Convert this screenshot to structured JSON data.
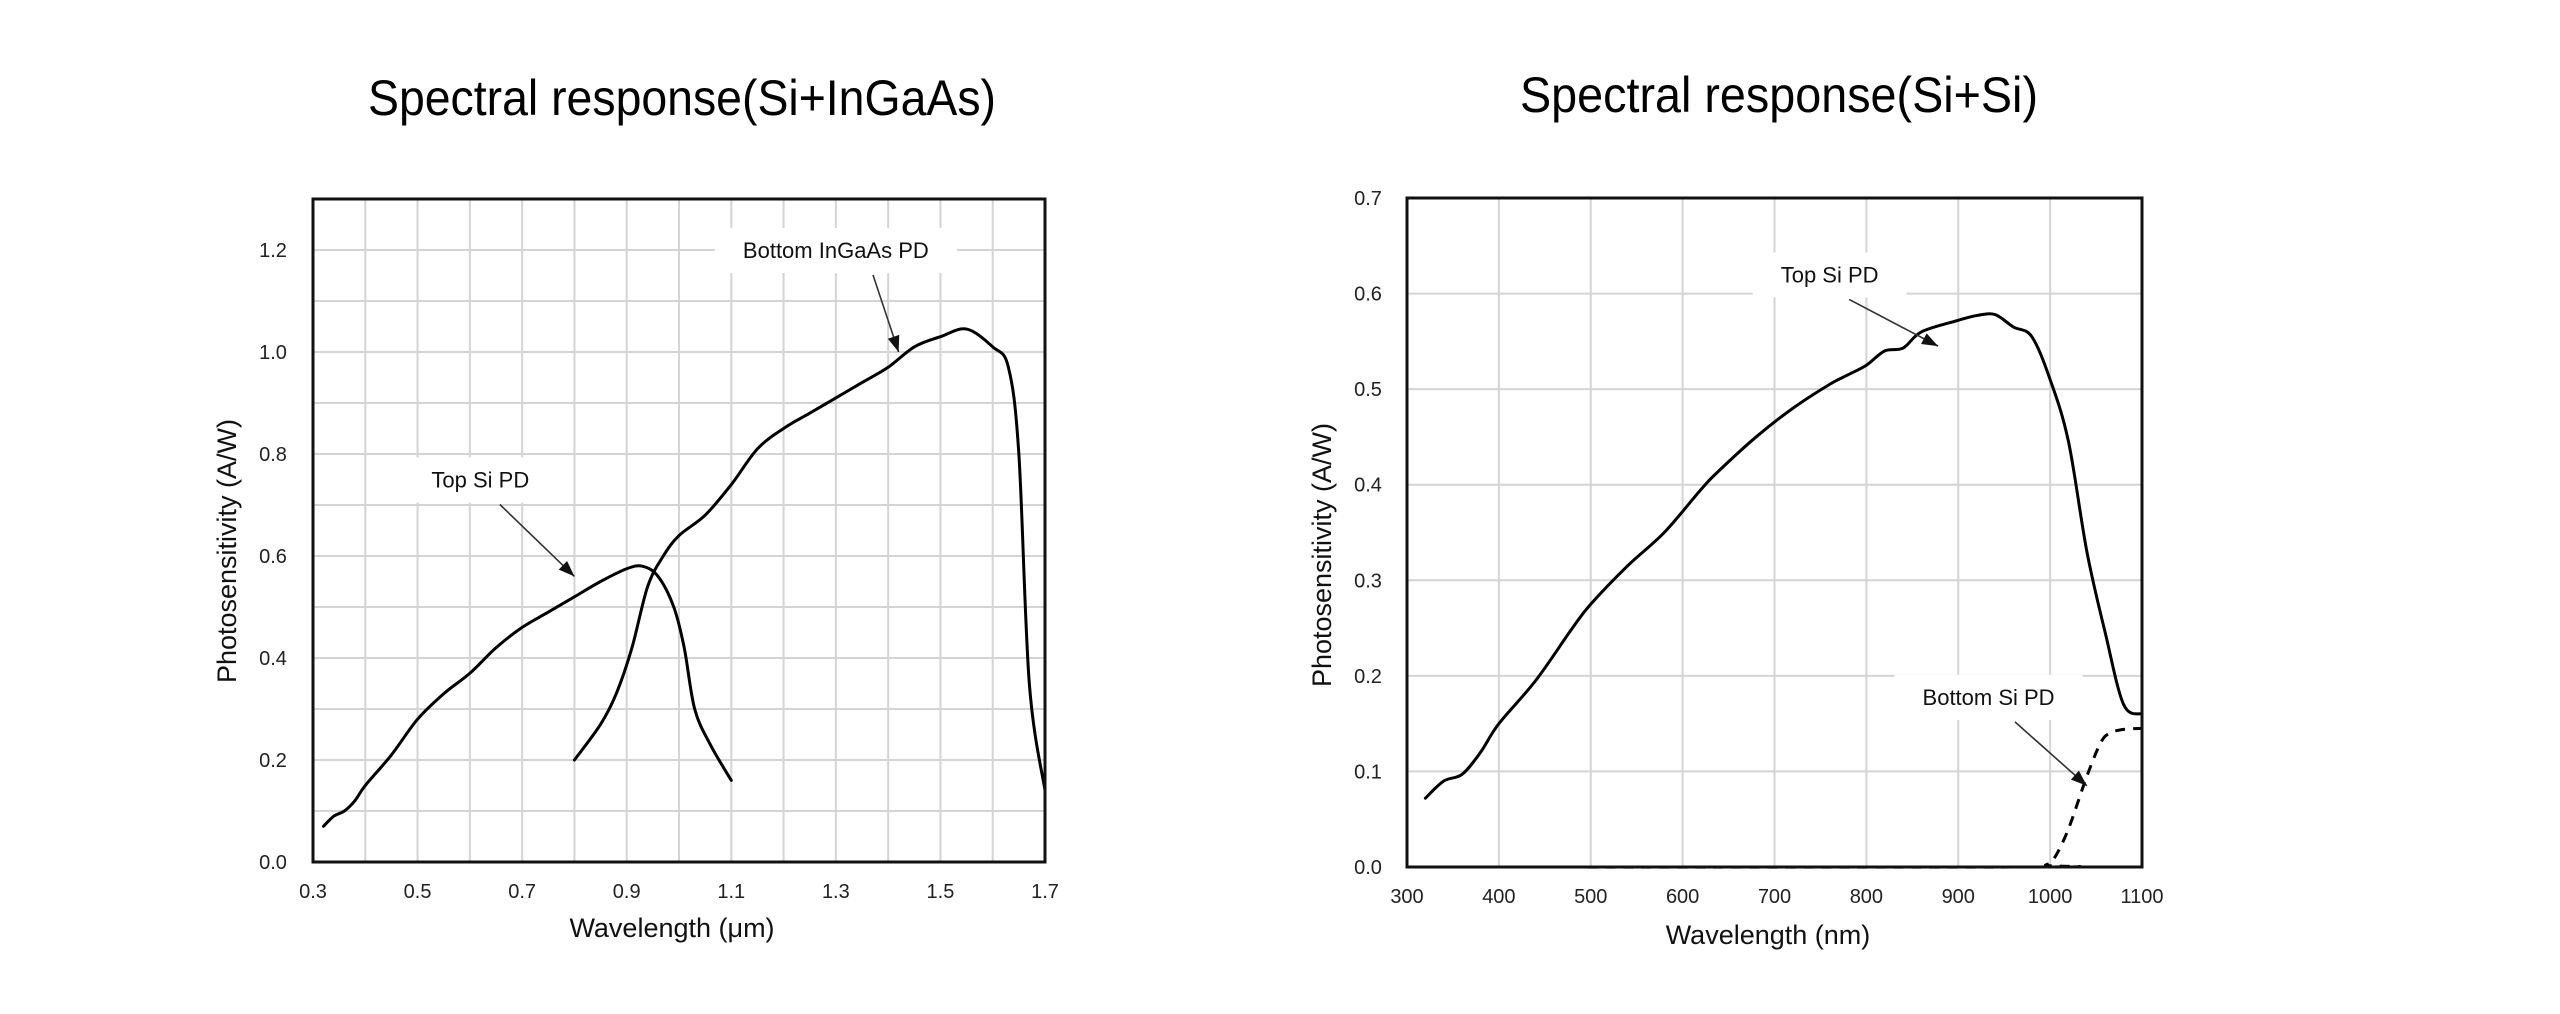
{
  "chart_data": [
    {
      "type": "line",
      "title": "Spectral response(Si+InGaAs)",
      "xlabel": "Wavelength (μm)",
      "ylabel": "Photosensitivity (A/W)",
      "xlim": [
        0.3,
        1.7
      ],
      "ylim": [
        0.0,
        1.3
      ],
      "xticks": [
        0.3,
        0.5,
        0.7,
        0.9,
        1.1,
        1.3,
        1.5,
        1.7
      ],
      "xtick_labels": [
        "0.3",
        "0.5",
        "0.7",
        "0.9",
        "1.1",
        "1.3",
        "1.5",
        "1.7"
      ],
      "yticks": [
        0.0,
        0.2,
        0.4,
        0.6,
        0.8,
        1.0,
        1.2
      ],
      "ytick_labels": [
        "0.0",
        "0.2",
        "0.4",
        "0.6",
        "0.8",
        "1.0",
        "1.2"
      ],
      "xgrid_step": 0.1,
      "ygrid_step": 0.1,
      "grid": true,
      "series": [
        {
          "name": "Top Si PD",
          "style": "solid",
          "x": [
            0.32,
            0.34,
            0.36,
            0.38,
            0.4,
            0.45,
            0.5,
            0.55,
            0.6,
            0.65,
            0.7,
            0.75,
            0.8,
            0.85,
            0.9,
            0.93,
            0.96,
            0.99,
            1.01,
            1.03,
            1.06,
            1.1
          ],
          "y": [
            0.07,
            0.09,
            0.1,
            0.12,
            0.15,
            0.21,
            0.28,
            0.33,
            0.37,
            0.42,
            0.46,
            0.49,
            0.52,
            0.55,
            0.575,
            0.58,
            0.56,
            0.5,
            0.42,
            0.3,
            0.23,
            0.16
          ]
        },
        {
          "name": "Bottom InGaAs PD",
          "style": "solid",
          "x": [
            0.8,
            0.85,
            0.88,
            0.91,
            0.94,
            0.97,
            1.0,
            1.05,
            1.1,
            1.15,
            1.2,
            1.25,
            1.3,
            1.35,
            1.4,
            1.45,
            1.5,
            1.55,
            1.6,
            1.63,
            1.65,
            1.67,
            1.7
          ],
          "y": [
            0.2,
            0.27,
            0.33,
            0.42,
            0.54,
            0.6,
            0.64,
            0.68,
            0.74,
            0.81,
            0.85,
            0.88,
            0.91,
            0.94,
            0.97,
            1.01,
            1.03,
            1.045,
            1.01,
            0.97,
            0.8,
            0.35,
            0.14
          ]
        }
      ],
      "annotations": [
        {
          "text": "Bottom InGaAs PD",
          "series": "Bottom InGaAs PD",
          "label_at": [
            1.3,
            1.2
          ],
          "arrow_to": [
            1.42,
            1.0
          ]
        },
        {
          "text": "Top Si PD",
          "series": "Top Si PD",
          "label_at": [
            0.62,
            0.75
          ],
          "arrow_to": [
            0.8,
            0.56
          ]
        }
      ]
    },
    {
      "type": "line",
      "title": "Spectral response(Si+Si)",
      "xlabel": "Wavelength (nm)",
      "ylabel": "Photosensitivity (A/W)",
      "xlim": [
        300,
        1100
      ],
      "ylim": [
        0.0,
        0.7
      ],
      "xticks": [
        300,
        400,
        500,
        600,
        700,
        800,
        900,
        1000,
        1100
      ],
      "xtick_labels": [
        "300",
        "400",
        "500",
        "600",
        "700",
        "800",
        "900",
        "1000",
        "1100"
      ],
      "yticks": [
        0.0,
        0.1,
        0.2,
        0.3,
        0.4,
        0.5,
        0.6,
        0.7
      ],
      "ytick_labels": [
        "0.0",
        "0.1",
        "0.2",
        "0.3",
        "0.4",
        "0.5",
        "0.6",
        "0.7"
      ],
      "xgrid_step": 100,
      "ygrid_step": 0.1,
      "grid": true,
      "series": [
        {
          "name": "Top Si PD",
          "style": "solid",
          "x": [
            320,
            340,
            360,
            380,
            400,
            440,
            480,
            500,
            540,
            580,
            620,
            640,
            680,
            720,
            760,
            780,
            800,
            820,
            840,
            860,
            900,
            920,
            940,
            960,
            980,
            1000,
            1020,
            1040,
            1060,
            1080,
            1100
          ],
          "y": [
            0.072,
            0.09,
            0.097,
            0.12,
            0.15,
            0.195,
            0.25,
            0.275,
            0.315,
            0.35,
            0.395,
            0.415,
            0.45,
            0.48,
            0.505,
            0.515,
            0.525,
            0.54,
            0.543,
            0.56,
            0.572,
            0.577,
            0.578,
            0.565,
            0.555,
            0.51,
            0.445,
            0.33,
            0.245,
            0.17,
            0.16
          ]
        },
        {
          "name": "Bottom Si PD",
          "style": "dashed",
          "x": [
            320,
            980,
            995,
            1005,
            1020,
            1040,
            1055,
            1065,
            1080,
            1100
          ],
          "y": [
            0.0,
            0.0,
            0.002,
            0.01,
            0.04,
            0.095,
            0.13,
            0.14,
            0.144,
            0.145
          ]
        }
      ],
      "annotations": [
        {
          "text": "Top Si PD",
          "series": "Top Si PD",
          "label_at": [
            760,
            0.62
          ],
          "arrow_to": [
            878,
            0.545
          ]
        },
        {
          "text": "Bottom Si PD",
          "series": "Bottom Si PD",
          "label_at": [
            933,
            0.178
          ],
          "arrow_to": [
            1040,
            0.085
          ]
        }
      ]
    }
  ]
}
